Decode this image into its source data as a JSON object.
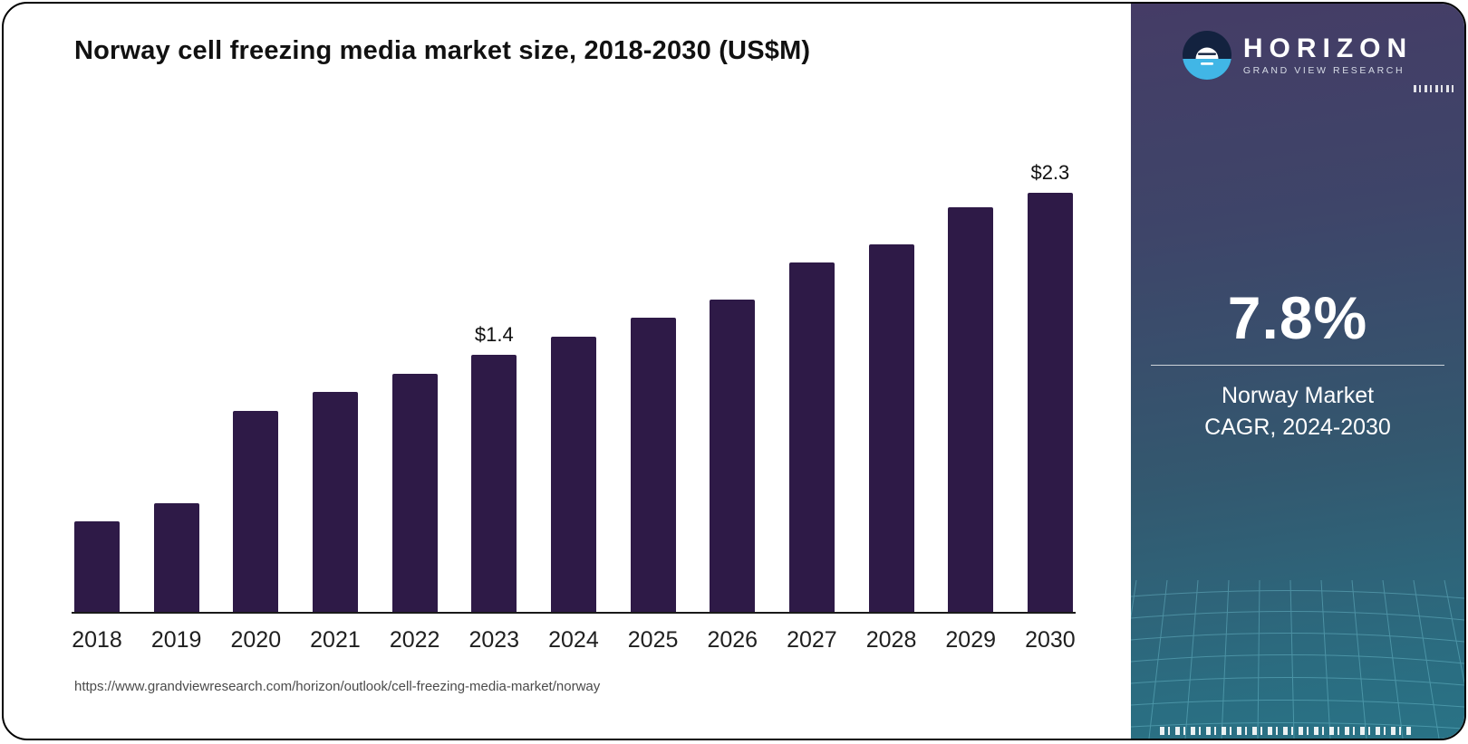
{
  "header": {
    "title": "Norway cell freezing media market size, 2018-2030 (US$M)"
  },
  "footer": {
    "source_url": "https://www.grandviewresearch.com/horizon/outlook/cell-freezing-media-market/norway"
  },
  "chart_data": {
    "type": "bar",
    "title": "Norway cell freezing media market size, 2018-2030 (US$M)",
    "categories": [
      "2018",
      "2019",
      "2020",
      "2021",
      "2022",
      "2023",
      "2024",
      "2025",
      "2026",
      "2027",
      "2028",
      "2029",
      "2030"
    ],
    "values": [
      0.5,
      0.6,
      1.1,
      1.2,
      1.3,
      1.4,
      1.5,
      1.6,
      1.7,
      1.9,
      2.0,
      2.2,
      2.3
    ],
    "value_labels": {
      "2023": "$1.4",
      "2030": "$2.3"
    },
    "xlabel": "",
    "ylabel": "",
    "ylim": [
      0,
      2.45
    ],
    "grid": false,
    "legend": false,
    "bar_color": "#2e1a47"
  },
  "sidebar": {
    "logo": {
      "brand": "HORIZON",
      "subbrand": "GRAND VIEW RESEARCH"
    },
    "stat": {
      "value": "7.8%",
      "label_line1": "Norway Market",
      "label_line2": "CAGR, 2024-2030"
    },
    "colors": {
      "gradient_top": "#453c66",
      "gradient_bottom": "#297386",
      "accent_blue": "#41b6e6"
    }
  }
}
